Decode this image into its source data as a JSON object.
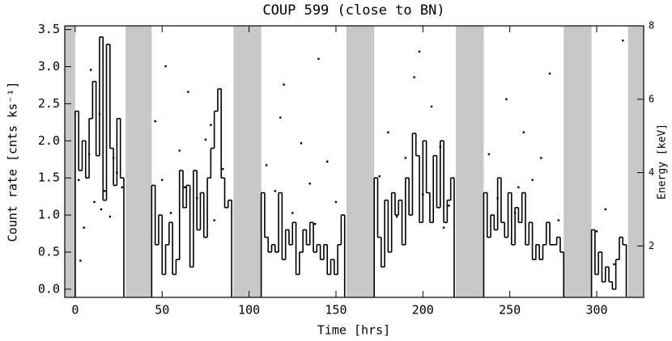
{
  "chart_data": {
    "type": "lightcurve",
    "title": "COUP 599 (close to BN)",
    "x_label": "Time [hrs]",
    "y_label": "Count rate [cnts ks⁻¹]",
    "y2_label": "Energy [keV]",
    "xlim": [
      -6,
      327
    ],
    "xticks": [
      0,
      50,
      100,
      150,
      200,
      250,
      300
    ],
    "ylim": [
      -0.11,
      3.55
    ],
    "yticks": [
      {
        "value": 0,
        "label": "0.0"
      },
      0.5,
      {
        "value": 1,
        "label": "1.0"
      },
      1.5,
      {
        "value": 2,
        "label": "2.0"
      },
      2.5,
      {
        "value": 3,
        "label": "3.0"
      },
      3.5
    ],
    "y2lim": [
      0.6,
      8.0
    ],
    "y2ticks": [
      2,
      4,
      6,
      8
    ],
    "gaps": [
      [
        -6,
        0
      ],
      [
        29,
        44
      ],
      [
        91,
        107
      ],
      [
        156,
        172
      ],
      [
        219,
        235
      ],
      [
        281,
        297
      ],
      [
        318,
        327
      ]
    ],
    "gap_color": "#c8c8c8",
    "series": [
      {
        "color": "#000000",
        "x": [
          0,
          2,
          4,
          6,
          8,
          10,
          12,
          14,
          16,
          18,
          20,
          22,
          24,
          26,
          28,
          44,
          46,
          48,
          50,
          52,
          54,
          56,
          58,
          60,
          62,
          64,
          66,
          68,
          70,
          72,
          74,
          76,
          78,
          80,
          82,
          84,
          86,
          88,
          90,
          107,
          109,
          111,
          113,
          115,
          117,
          119,
          121,
          123,
          125,
          127,
          129,
          131,
          133,
          135,
          137,
          139,
          141,
          143,
          145,
          147,
          149,
          151,
          153,
          155,
          172,
          174,
          176,
          178,
          180,
          182,
          184,
          186,
          188,
          190,
          192,
          194,
          196,
          198,
          200,
          202,
          204,
          206,
          208,
          210,
          212,
          214,
          216,
          218,
          235,
          237,
          239,
          241,
          243,
          245,
          247,
          249,
          251,
          253,
          255,
          257,
          259,
          261,
          263,
          265,
          267,
          269,
          271,
          273,
          275,
          277,
          279,
          281,
          297,
          299,
          301,
          303,
          305,
          307,
          309,
          311,
          313,
          315,
          317
        ],
        "values": [
          2.4,
          1.6,
          2.0,
          1.5,
          2.3,
          2.8,
          1.8,
          3.4,
          1.2,
          3.3,
          1.9,
          1.4,
          2.3,
          1.5,
          null,
          1.4,
          0.6,
          1.0,
          0.2,
          0.6,
          0.9,
          0.2,
          0.4,
          1.6,
          1.1,
          1.4,
          0.3,
          1.6,
          0.8,
          1.3,
          0.7,
          1.5,
          1.9,
          2.4,
          2.7,
          1.5,
          1.1,
          1.2,
          null,
          1.3,
          0.7,
          0.5,
          0.6,
          0.5,
          1.3,
          0.4,
          0.8,
          0.6,
          0.9,
          0.2,
          0.5,
          0.8,
          0.6,
          0.9,
          0.5,
          0.6,
          0.4,
          0.6,
          0.2,
          0.4,
          0.2,
          0.6,
          1.0,
          null,
          1.5,
          0.7,
          0.3,
          1.2,
          0.5,
          1.3,
          1.0,
          1.2,
          0.6,
          1.5,
          1.0,
          2.1,
          1.8,
          0.9,
          2.0,
          1.3,
          0.9,
          1.8,
          1.1,
          2.0,
          0.9,
          1.2,
          1.5,
          null,
          1.3,
          0.7,
          1.0,
          0.8,
          1.5,
          0.9,
          0.7,
          1.3,
          0.6,
          1.1,
          0.9,
          1.3,
          0.6,
          0.9,
          0.4,
          0.6,
          0.4,
          0.6,
          0.9,
          0.6,
          0.6,
          0.7,
          0.5,
          null,
          0.8,
          0.2,
          0.5,
          0.1,
          0.3,
          0.1,
          0.0,
          0.4,
          0.7,
          0.6,
          null
        ]
      },
      {
        "type": "scatter",
        "axis": "y2",
        "color": "#000000",
        "x": [
          2,
          5,
          8,
          11,
          14,
          17,
          20,
          24,
          27,
          3,
          9,
          15,
          22,
          46,
          50,
          55,
          60,
          65,
          70,
          75,
          80,
          85,
          52,
          63,
          78,
          110,
          115,
          120,
          125,
          130,
          135,
          140,
          145,
          150,
          118,
          138,
          175,
          180,
          185,
          190,
          195,
          200,
          205,
          210,
          215,
          198,
          212,
          238,
          243,
          248,
          253,
          258,
          263,
          268,
          273,
          278,
          255,
          300,
          305,
          310,
          315
        ],
        "values": [
          3.8,
          2.5,
          4.5,
          3.2,
          5.6,
          3.5,
          2.8,
          4.0,
          3.6,
          1.6,
          6.8,
          3.0,
          4.4,
          5.4,
          3.8,
          2.9,
          4.6,
          6.2,
          3.3,
          4.9,
          2.7,
          4.1,
          6.9,
          3.6,
          5.3,
          4.2,
          3.5,
          6.4,
          2.9,
          4.8,
          3.7,
          7.1,
          4.3,
          3.2,
          5.5,
          2.6,
          3.9,
          5.1,
          2.8,
          4.4,
          6.6,
          3.4,
          5.8,
          4.7,
          3.1,
          7.3,
          2.5,
          4.5,
          3.3,
          6.0,
          2.9,
          5.1,
          3.8,
          4.4,
          6.7,
          2.7,
          3.6,
          2.4,
          3.0,
          1.5,
          7.6
        ]
      }
    ]
  }
}
